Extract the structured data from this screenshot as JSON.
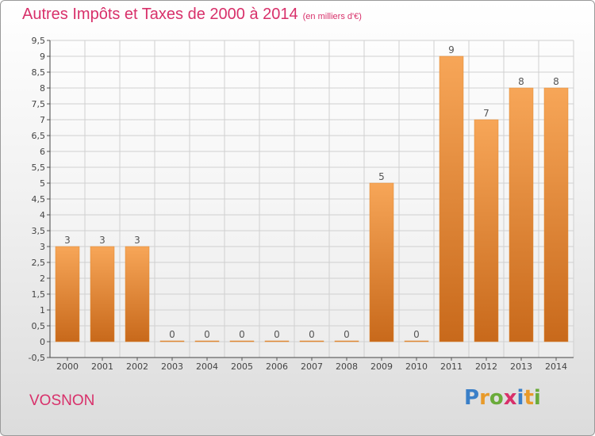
{
  "chart_data": {
    "type": "bar",
    "title": "Autres Impôts et Taxes de 2000 à 2014",
    "subtitle": "(en milliers d'€)",
    "categories": [
      "2000",
      "2001",
      "2002",
      "2003",
      "2004",
      "2005",
      "2006",
      "2007",
      "2008",
      "2009",
      "2010",
      "2011",
      "2012",
      "2013",
      "2014"
    ],
    "values": [
      3,
      3,
      3,
      0,
      0,
      0,
      0,
      0,
      0,
      5,
      0,
      9,
      7,
      8,
      8
    ],
    "data_labels": [
      "3",
      "3",
      "3",
      "0",
      "0",
      "0",
      "0",
      "0",
      "0",
      "5",
      "0",
      "9",
      "7",
      "8",
      "8"
    ],
    "ylim": [
      -0.5,
      9.5
    ],
    "yticks": [
      -0.5,
      0,
      0.5,
      1,
      1.5,
      2,
      2.5,
      3,
      3.5,
      4,
      4.5,
      5,
      5.5,
      6,
      6.5,
      7,
      7.5,
      8,
      8.5,
      9,
      9.5
    ],
    "ytick_labels": [
      "-0,5",
      "0",
      "0,5",
      "1",
      "1,5",
      "2",
      "2,5",
      "3",
      "3,5",
      "4",
      "4,5",
      "5",
      "5,5",
      "6",
      "6,5",
      "7",
      "7,5",
      "8",
      "8,5",
      "9",
      "9,5"
    ],
    "xlabel": "",
    "ylabel": "",
    "grid": true,
    "bar_color_top": "#f7a658",
    "bar_color_bottom": "#c8691b"
  },
  "footer": {
    "commune": "VOSNON",
    "logo_letters": [
      "P",
      "r",
      "o",
      "x",
      "i",
      "t",
      "i"
    ]
  }
}
